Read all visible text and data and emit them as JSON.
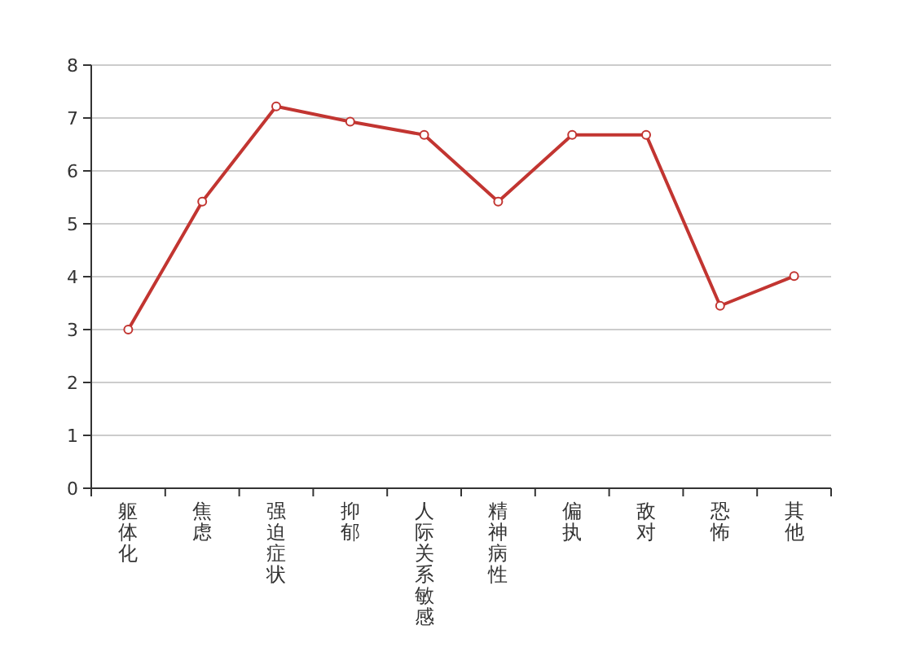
{
  "chart_data": {
    "type": "line",
    "categories": [
      "躯体化",
      "焦虑",
      "强迫症状",
      "抑郁",
      "人际关系敏感",
      "精神病性",
      "偏执",
      "敌对",
      "恐怖",
      "其他"
    ],
    "series": [
      {
        "color": "#c23531",
        "values": [
          3.0,
          5.42,
          7.22,
          6.93,
          6.68,
          5.42,
          6.68,
          6.68,
          3.45,
          4.01
        ]
      }
    ],
    "ylim": [
      0,
      8
    ],
    "yticks": [
      0,
      1,
      2,
      3,
      4,
      5,
      6,
      7,
      8
    ],
    "grid": "y",
    "marker": "circle",
    "line_style": "solid"
  }
}
